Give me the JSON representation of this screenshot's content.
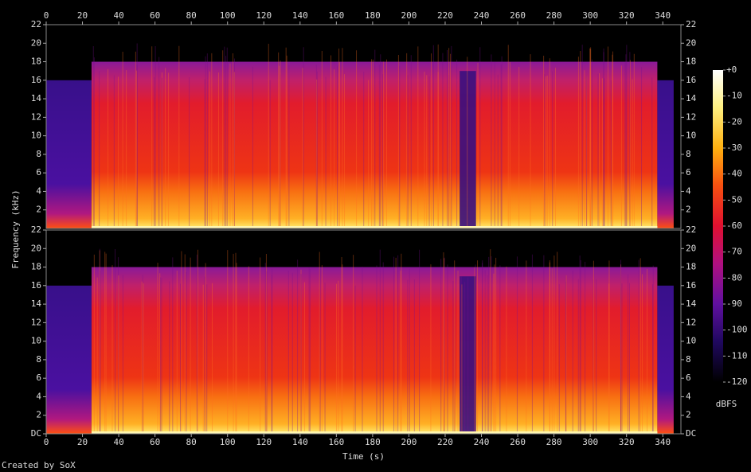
{
  "chart_data": [
    {
      "type": "spectrogram",
      "xlim": [
        0,
        350
      ],
      "xticks": [
        0,
        20,
        40,
        60,
        80,
        100,
        120,
        140,
        160,
        180,
        200,
        220,
        240,
        260,
        280,
        300,
        320,
        340
      ],
      "ylim": [
        0,
        22
      ],
      "yticks": [
        2,
        4,
        6,
        8,
        10,
        12,
        14,
        16,
        18,
        20,
        22
      ]
    },
    {
      "type": "spectrogram",
      "xlabel": "Time (s)",
      "xlim": [
        0,
        350
      ],
      "xticks": [
        0,
        20,
        40,
        60,
        80,
        100,
        120,
        140,
        160,
        180,
        200,
        220,
        240,
        260,
        280,
        300,
        320,
        340
      ],
      "ylim": [
        0,
        22
      ],
      "yticks": [
        {
          "value": 0,
          "label": "DC"
        },
        2,
        4,
        6,
        8,
        10,
        12,
        14,
        16,
        18,
        20,
        22
      ]
    }
  ],
  "ylabel": "Frequency (kHz)",
  "colorbar": {
    "label": "dBFS",
    "lim": [
      -120,
      0
    ],
    "ticks": [
      {
        "value": 0,
        "label": "+0"
      },
      -10,
      -20,
      -30,
      -40,
      -50,
      -60,
      -70,
      -80,
      -90,
      -100,
      -110,
      -120
    ]
  },
  "footer": "Created by SoX"
}
